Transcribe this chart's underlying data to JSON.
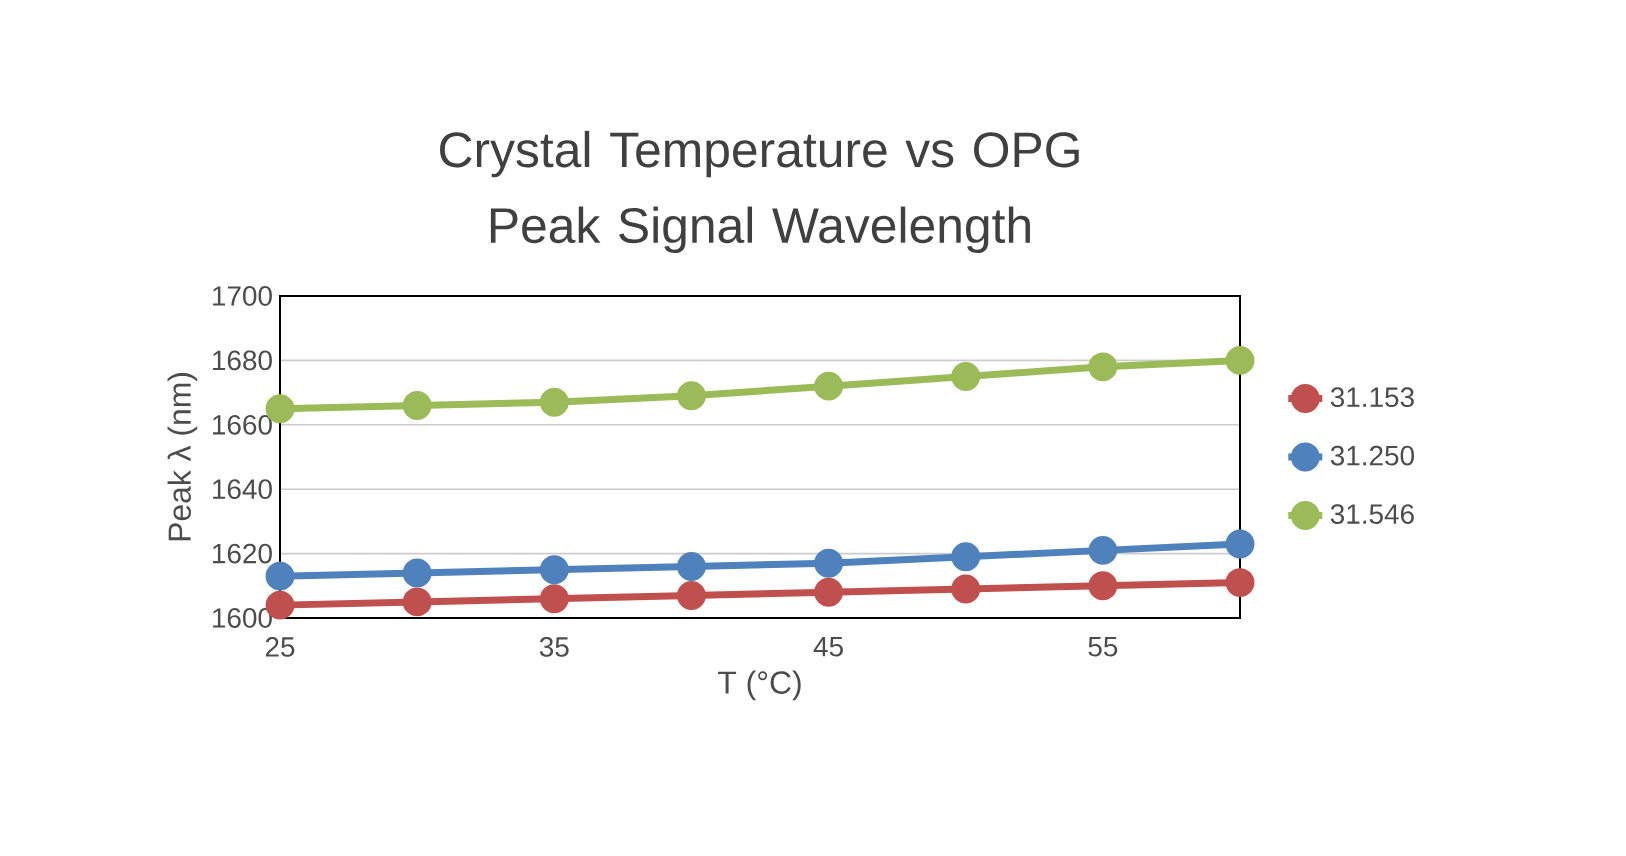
{
  "chart_data": {
    "type": "line",
    "title": "Crystal Temperature vs OPG Peak Signal Wavelength",
    "xlabel": "T (°C)",
    "ylabel": "Peak λ (nm)",
    "x": [
      25,
      30,
      35,
      40,
      45,
      50,
      55,
      60
    ],
    "series": [
      {
        "name": "31.153",
        "color": "#c0504d",
        "values": [
          1604,
          1605,
          1606,
          1607,
          1608,
          1609,
          1610,
          1611
        ]
      },
      {
        "name": "31.250",
        "color": "#4f81bd",
        "values": [
          1613,
          1614,
          1615,
          1616,
          1617,
          1619,
          1621,
          1623
        ]
      },
      {
        "name": "31.546",
        "color": "#9bbb59",
        "values": [
          1665,
          1666,
          1667,
          1669,
          1672,
          1675,
          1678,
          1680
        ]
      }
    ],
    "xlim": [
      25,
      60
    ],
    "xticks": [
      25,
      35,
      45,
      55
    ],
    "ylim": [
      1600,
      1700
    ],
    "yticks": [
      1600,
      1620,
      1640,
      1660,
      1680,
      1700
    ],
    "grid": "y",
    "legend": "right",
    "marker": "circle",
    "line_style": "solid"
  }
}
